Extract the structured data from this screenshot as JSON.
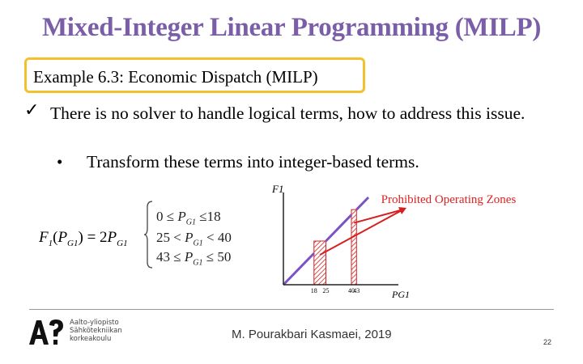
{
  "slide": {
    "title": "Mixed-Integer Linear Programming (MILP)",
    "example_heading": "Example 6.3: Economic Dispatch (MILP)",
    "bullet_text": "There is no solver to handle logical terms, how to address this issue.",
    "sub_bullet_text": "Transform these terms into integer-based terms.",
    "check_symbol": "✓",
    "dot_symbol": "•"
  },
  "equation": {
    "func": "F",
    "func_sub": "1",
    "arg": "P",
    "arg_sub": "G1",
    "rhs": "2",
    "cases": [
      {
        "left": "0",
        "op1": "≤",
        "var": "P",
        "sub": "G1",
        "op2": "≤",
        "right": "18"
      },
      {
        "left": "25",
        "op1": "<",
        "var": "P",
        "sub": "G1",
        "op2": "<",
        "right": "40"
      },
      {
        "left": "43",
        "op1": "≤",
        "var": "P",
        "sub": "G1",
        "op2": "≤",
        "right": "50"
      }
    ]
  },
  "chart_data": {
    "type": "line",
    "ylabel": "F1",
    "xlabel": "PG1",
    "x_tick_labels": [
      "18",
      "25",
      "40",
      "43"
    ],
    "allowed_segments": [
      [
        0,
        18
      ],
      [
        25,
        40
      ],
      [
        43,
        50
      ]
    ],
    "prohibited_zones": [
      [
        18,
        25
      ],
      [
        40,
        43
      ]
    ],
    "annotation": "Prohibited Operating Zones",
    "line_color": "#7b52c7",
    "zone_color": "#d62020",
    "slope": 2
  },
  "footer": {
    "author": "M. Pourakbari Kasmaei, 2019",
    "page_number": "22",
    "logo_lines": [
      "Aalto-yliopisto",
      "Sähkötekniikan",
      "korkeakoulu"
    ]
  }
}
